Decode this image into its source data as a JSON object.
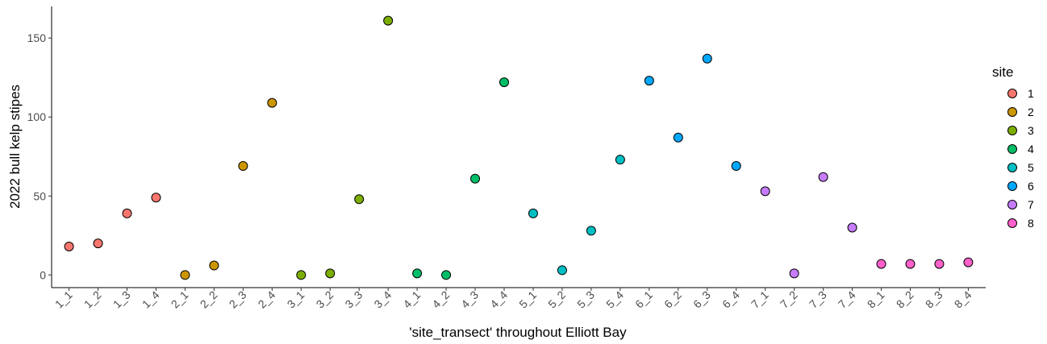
{
  "chart_data": {
    "type": "scatter",
    "xlabel": "'site_transect' throughout Elliott Bay",
    "ylabel": "2022 bull kelp stipes",
    "categories": [
      "1_1",
      "1_2",
      "1_3",
      "1_4",
      "2_1",
      "2_2",
      "2_3",
      "2_4",
      "3_1",
      "3_2",
      "3_3",
      "3_4",
      "4_1",
      "4_2",
      "4_3",
      "4_4",
      "5_1",
      "5_2",
      "5_3",
      "5_4",
      "6_1",
      "6_2",
      "6_3",
      "6_4",
      "7_1",
      "7_2",
      "7_3",
      "7_4",
      "8_1",
      "8_2",
      "8_3",
      "8_4"
    ],
    "yticks": [
      0,
      50,
      100,
      150
    ],
    "ylim": [
      -8,
      170
    ],
    "grid": false,
    "legend": {
      "title": "site",
      "position": "right",
      "entries": [
        {
          "label": "1",
          "color": "#F8766D"
        },
        {
          "label": "2",
          "color": "#CD9600"
        },
        {
          "label": "3",
          "color": "#7CAE00"
        },
        {
          "label": "4",
          "color": "#00BE67"
        },
        {
          "label": "5",
          "color": "#00BFC4"
        },
        {
          "label": "6",
          "color": "#00A9FF"
        },
        {
          "label": "7",
          "color": "#C77CFF"
        },
        {
          "label": "8",
          "color": "#FF61CC"
        }
      ]
    },
    "points": [
      {
        "x": "1_1",
        "y": 18,
        "site": "1"
      },
      {
        "x": "1_2",
        "y": 20,
        "site": "1"
      },
      {
        "x": "1_3",
        "y": 39,
        "site": "1"
      },
      {
        "x": "1_4",
        "y": 49,
        "site": "1"
      },
      {
        "x": "2_1",
        "y": 0,
        "site": "2"
      },
      {
        "x": "2_2",
        "y": 6,
        "site": "2"
      },
      {
        "x": "2_3",
        "y": 69,
        "site": "2"
      },
      {
        "x": "2_4",
        "y": 109,
        "site": "2"
      },
      {
        "x": "3_1",
        "y": 0,
        "site": "3"
      },
      {
        "x": "3_2",
        "y": 1,
        "site": "3"
      },
      {
        "x": "3_3",
        "y": 48,
        "site": "3"
      },
      {
        "x": "3_4",
        "y": 161,
        "site": "3"
      },
      {
        "x": "4_1",
        "y": 1,
        "site": "4"
      },
      {
        "x": "4_2",
        "y": 0,
        "site": "4"
      },
      {
        "x": "4_3",
        "y": 61,
        "site": "4"
      },
      {
        "x": "4_4",
        "y": 122,
        "site": "4"
      },
      {
        "x": "5_1",
        "y": 39,
        "site": "5"
      },
      {
        "x": "5_2",
        "y": 3,
        "site": "5"
      },
      {
        "x": "5_3",
        "y": 28,
        "site": "5"
      },
      {
        "x": "5_4",
        "y": 73,
        "site": "5"
      },
      {
        "x": "6_1",
        "y": 123,
        "site": "6"
      },
      {
        "x": "6_2",
        "y": 87,
        "site": "6"
      },
      {
        "x": "6_3",
        "y": 137,
        "site": "6"
      },
      {
        "x": "6_4",
        "y": 69,
        "site": "6"
      },
      {
        "x": "7_1",
        "y": 53,
        "site": "7"
      },
      {
        "x": "7_2",
        "y": 1,
        "site": "7"
      },
      {
        "x": "7_3",
        "y": 62,
        "site": "7"
      },
      {
        "x": "7_4",
        "y": 30,
        "site": "7"
      },
      {
        "x": "8_1",
        "y": 7,
        "site": "8"
      },
      {
        "x": "8_2",
        "y": 7,
        "site": "8"
      },
      {
        "x": "8_3",
        "y": 7,
        "site": "8"
      },
      {
        "x": "8_4",
        "y": 8,
        "site": "8"
      }
    ]
  }
}
